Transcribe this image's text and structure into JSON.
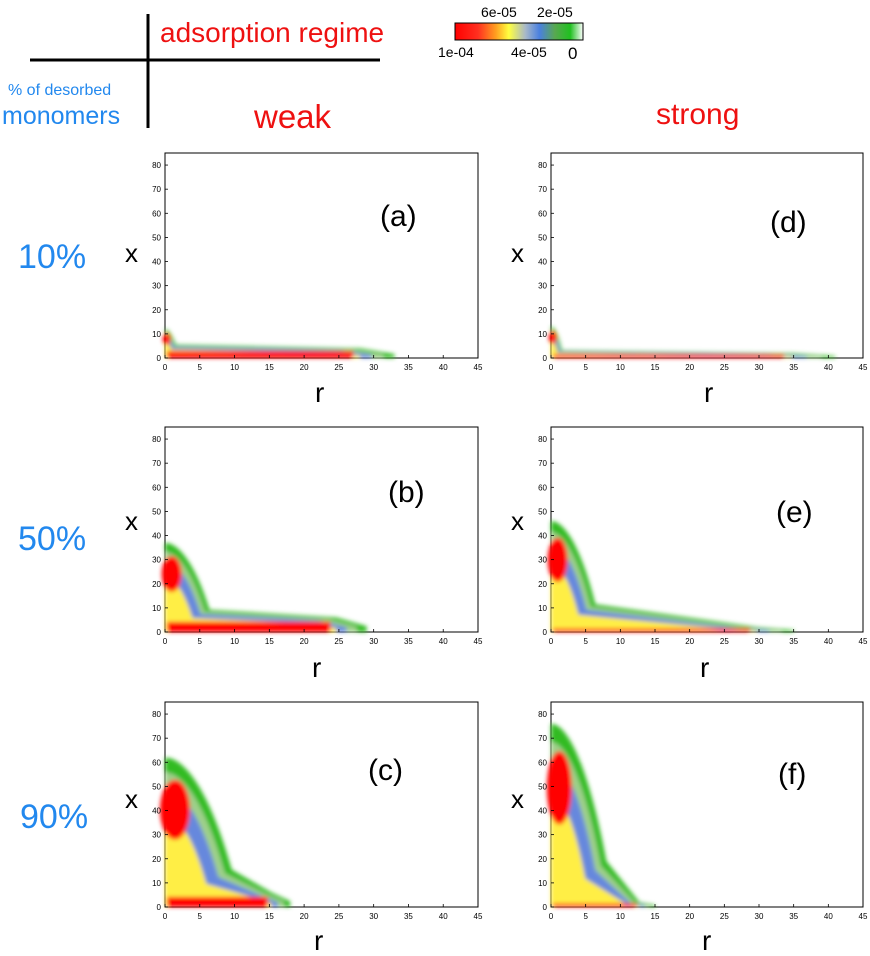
{
  "header": {
    "regime_label": "adsorption regime",
    "monomers_small": "% of desorbed",
    "monomers_big": "monomers",
    "col_weak": "weak",
    "col_strong": "strong"
  },
  "colorbar": {
    "labels_top": [
      "6e-05",
      "2e-05"
    ],
    "labels_bottom": [
      "1e-04",
      "4e-05",
      "0"
    ],
    "colors": [
      "#ff0000",
      "#ff2a1a",
      "#ffa020",
      "#ffff40",
      "#a8b8c8",
      "#4a80e0",
      "#58a850",
      "#20c020",
      "#ffffff"
    ]
  },
  "rows": [
    "10%",
    "50%",
    "90%"
  ],
  "colors": {
    "red_text": "#ee1111",
    "blue_text": "#2288ee",
    "density_high": "#ff0000",
    "density_mid": "#ffee44",
    "density_lowmid": "#6688dd",
    "density_low": "#33bb22"
  },
  "chart_data": [
    {
      "type": "heatmap",
      "panel_label": "(a)",
      "xlabel": "r",
      "ylabel": "x",
      "xlim": [
        0,
        45
      ],
      "ylim": [
        0,
        85
      ],
      "xticks": [
        "0",
        "5",
        "10",
        "15",
        "20",
        "25",
        "30",
        "35",
        "40",
        "45"
      ],
      "yticks": [
        "0",
        "10",
        "20",
        "30",
        "40",
        "50",
        "60",
        "70",
        "80"
      ],
      "extent": {
        "lobe_height": 12,
        "lobe_width": 2,
        "tail_end": 33,
        "tail_height": 4
      }
    },
    {
      "type": "heatmap",
      "panel_label": "(b)",
      "xlabel": "r",
      "ylabel": "x",
      "xlim": [
        0,
        45
      ],
      "ylim": [
        0,
        85
      ],
      "xticks": [
        "0",
        "5",
        "10",
        "15",
        "20",
        "25",
        "30",
        "35",
        "40",
        "45"
      ],
      "yticks": [
        "0",
        "10",
        "20",
        "30",
        "40",
        "50",
        "60",
        "70",
        "80"
      ],
      "extent": {
        "lobe_height": 37,
        "lobe_width": 8,
        "tail_end": 29,
        "tail_height": 6
      }
    },
    {
      "type": "heatmap",
      "panel_label": "(c)",
      "xlabel": "r",
      "ylabel": "x",
      "xlim": [
        0,
        45
      ],
      "ylim": [
        0,
        85
      ],
      "xticks": [
        "0",
        "5",
        "10",
        "15",
        "20",
        "25",
        "30",
        "35",
        "40",
        "45"
      ],
      "yticks": [
        "0",
        "10",
        "20",
        "30",
        "40",
        "50",
        "60",
        "70",
        "80"
      ],
      "extent": {
        "lobe_height": 62,
        "lobe_width": 12,
        "tail_end": 18,
        "tail_height": 6
      }
    },
    {
      "type": "heatmap",
      "panel_label": "(d)",
      "xlabel": "r",
      "ylabel": "x",
      "xlim": [
        0,
        45
      ],
      "ylim": [
        0,
        85
      ],
      "xticks": [
        "0",
        "5",
        "10",
        "15",
        "20",
        "25",
        "30",
        "35",
        "40",
        "45"
      ],
      "yticks": [
        "0",
        "10",
        "20",
        "30",
        "40",
        "50",
        "60",
        "70",
        "80"
      ],
      "extent": {
        "lobe_height": 13,
        "lobe_width": 2,
        "tail_end": 41,
        "tail_height": 2
      }
    },
    {
      "type": "heatmap",
      "panel_label": "(e)",
      "xlabel": "r",
      "ylabel": "x",
      "xlim": [
        0,
        45
      ],
      "ylim": [
        0,
        85
      ],
      "xticks": [
        "0",
        "5",
        "10",
        "15",
        "20",
        "25",
        "30",
        "35",
        "40",
        "45"
      ],
      "yticks": [
        "0",
        "10",
        "20",
        "30",
        "40",
        "50",
        "60",
        "70",
        "80"
      ],
      "extent": {
        "lobe_height": 46,
        "lobe_width": 8,
        "tail_end": 35,
        "tail_height": 2
      }
    },
    {
      "type": "heatmap",
      "panel_label": "(f)",
      "xlabel": "r",
      "ylabel": "x",
      "xlim": [
        0,
        45
      ],
      "ylim": [
        0,
        85
      ],
      "xticks": [
        "0",
        "5",
        "10",
        "15",
        "20",
        "25",
        "30",
        "35",
        "40",
        "45"
      ],
      "yticks": [
        "0",
        "10",
        "20",
        "30",
        "40",
        "50",
        "60",
        "70",
        "80"
      ],
      "extent": {
        "lobe_height": 76,
        "lobe_width": 10,
        "tail_end": 15,
        "tail_height": 2
      }
    }
  ]
}
